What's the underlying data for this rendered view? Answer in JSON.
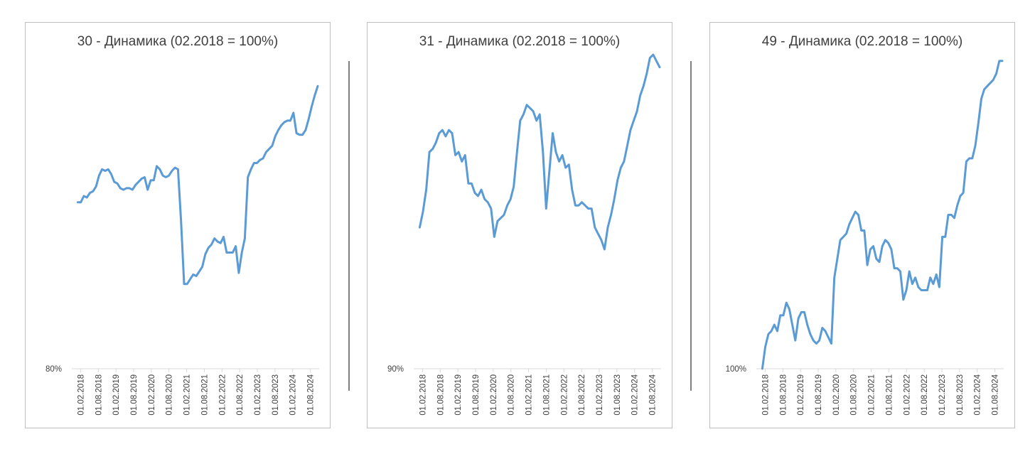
{
  "chart_data": [
    {
      "type": "line",
      "title": "30 - Динамика (02.2018 = 100%)",
      "y_tick_labels": [
        "80%"
      ],
      "ylim": [
        80,
        100
      ],
      "x_tick_labels": [
        "01.02.2018",
        "01.08.2018",
        "01.02.2019",
        "01.08.2019",
        "01.02.2020",
        "01.08.2020",
        "01.02.2021",
        "01.08.2021",
        "01.02.2022",
        "01.08.2022",
        "01.02.2023",
        "01.08.2023",
        "01.02.2024",
        "01.08.2024"
      ],
      "series": [
        {
          "color": "#5b9bd5",
          "values": [
            90.6,
            90.6,
            91.0,
            90.9,
            91.2,
            91.3,
            91.6,
            92.3,
            92.7,
            92.6,
            92.7,
            92.4,
            91.9,
            91.8,
            91.5,
            91.4,
            91.5,
            91.5,
            91.4,
            91.7,
            91.9,
            92.1,
            92.2,
            91.4,
            92.0,
            92.0,
            92.9,
            92.7,
            92.3,
            92.2,
            92.3,
            92.6,
            92.8,
            92.7,
            89.4,
            85.4,
            85.4,
            85.7,
            86.0,
            85.9,
            86.2,
            86.5,
            87.3,
            87.7,
            87.9,
            88.3,
            88.1,
            88.0,
            88.4,
            87.4,
            87.4,
            87.4,
            87.8,
            86.1,
            87.4,
            88.3,
            92.2,
            92.7,
            93.1,
            93.1,
            93.3,
            93.4,
            93.8,
            94.0,
            94.2,
            94.8,
            95.2,
            95.5,
            95.7,
            95.8,
            95.8,
            96.3,
            95.0,
            94.9,
            94.9,
            95.2,
            95.9,
            96.7,
            97.4,
            98.0
          ]
        }
      ]
    },
    {
      "type": "line",
      "title": "31 - Динамика (02.2018 = 100%)",
      "y_tick_labels": [
        "90%"
      ],
      "ylim": [
        90,
        100
      ],
      "x_tick_labels": [
        "01.02.2018",
        "01.08.2018",
        "01.02.2019",
        "01.08.2019",
        "01.02.2020",
        "01.08.2020",
        "01.02.2021",
        "01.08.2021",
        "01.02.2022",
        "01.08.2022",
        "01.02.2023",
        "01.08.2023",
        "01.02.2024",
        "01.08.2024"
      ],
      "series": [
        {
          "color": "#5b9bd5",
          "values": [
            94.5,
            95.0,
            95.7,
            96.9,
            97.0,
            97.2,
            97.5,
            97.6,
            97.4,
            97.6,
            97.5,
            96.8,
            96.9,
            96.6,
            96.8,
            95.9,
            95.9,
            95.6,
            95.5,
            95.7,
            95.4,
            95.3,
            95.1,
            94.2,
            94.7,
            94.8,
            94.9,
            95.2,
            95.4,
            95.8,
            96.9,
            97.9,
            98.1,
            98.4,
            98.3,
            98.2,
            97.9,
            98.1,
            96.9,
            95.1,
            96.3,
            97.5,
            96.9,
            96.6,
            96.8,
            96.4,
            96.5,
            95.7,
            95.2,
            95.2,
            95.3,
            95.2,
            95.1,
            95.1,
            94.5,
            94.3,
            94.1,
            93.8,
            94.5,
            94.9,
            95.4,
            96.0,
            96.4,
            96.6,
            97.1,
            97.6,
            97.9,
            98.2,
            98.7,
            99.0,
            99.4,
            99.9,
            100.0,
            99.8,
            99.6
          ]
        }
      ]
    },
    {
      "type": "line",
      "title": "49 - Динамика (02.2018 = 100%)",
      "y_tick_labels": [
        "100%"
      ],
      "ylim": [
        100,
        110
      ],
      "x_tick_labels": [
        "01.02.2018",
        "01.08.2018",
        "01.02.2019",
        "01.08.2019",
        "01.02.2020",
        "01.08.2020",
        "01.02.2021",
        "01.08.2021",
        "01.02.2022",
        "01.08.2022",
        "01.02.2023",
        "01.08.2023",
        "01.02.2024",
        "01.08.2024"
      ],
      "series": [
        {
          "color": "#5b9bd5",
          "values": [
            100.0,
            100.7,
            101.1,
            101.2,
            101.4,
            101.2,
            101.7,
            101.7,
            102.1,
            101.9,
            101.4,
            100.9,
            101.6,
            101.8,
            101.8,
            101.4,
            101.1,
            100.9,
            100.8,
            100.9,
            101.3,
            101.2,
            101.0,
            100.8,
            102.9,
            103.5,
            104.1,
            104.2,
            104.3,
            104.6,
            104.8,
            105.0,
            104.9,
            104.4,
            104.4,
            103.3,
            103.8,
            103.9,
            103.5,
            103.4,
            103.9,
            104.1,
            104.0,
            103.8,
            103.2,
            103.2,
            103.1,
            102.2,
            102.5,
            103.1,
            102.7,
            102.9,
            102.6,
            102.5,
            102.5,
            102.5,
            102.9,
            102.7,
            103.0,
            102.6,
            104.2,
            104.2,
            104.9,
            104.9,
            104.8,
            105.2,
            105.5,
            105.6,
            106.6,
            106.7,
            106.7,
            107.1,
            107.8,
            108.6,
            108.9,
            109.0,
            109.1,
            109.2,
            109.4,
            109.8,
            109.8
          ]
        }
      ]
    }
  ]
}
